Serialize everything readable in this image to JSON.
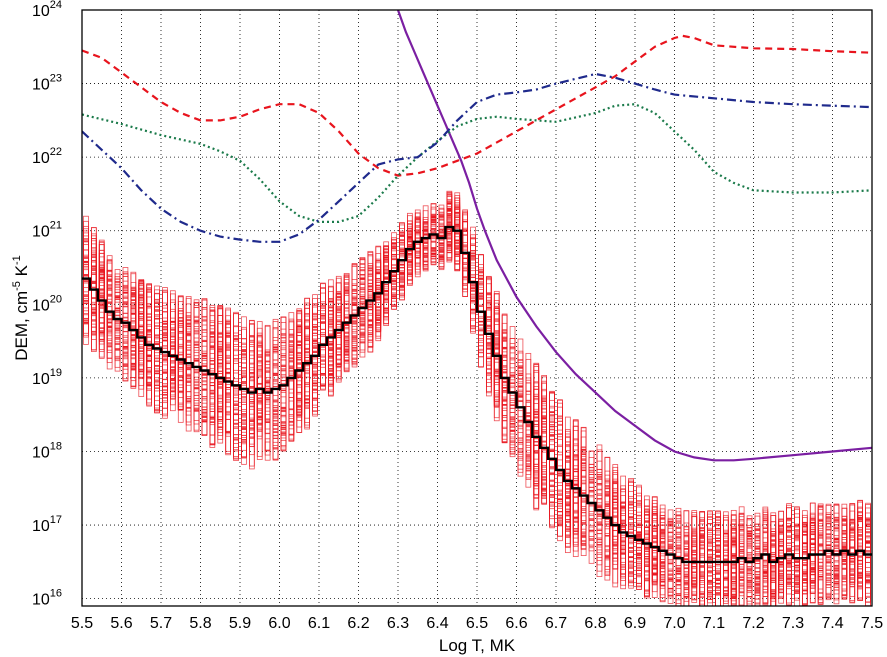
{
  "chart_data": {
    "type": "line",
    "title": "",
    "xlabel": "Log T, MK",
    "ylabel": "DEM, cm",
    "ylabel_exp1": "-5",
    "ylabel_mid": " K",
    "ylabel_exp2": "-1",
    "xlim": [
      5.5,
      7.5
    ],
    "ylim_log10": [
      15.9,
      24
    ],
    "y_scale": "log",
    "grid": true,
    "x_ticks": [
      "5.5",
      "5.6",
      "5.7",
      "5.8",
      "5.9",
      "6.0",
      "6.1",
      "6.2",
      "6.3",
      "6.4",
      "6.5",
      "6.6",
      "6.7",
      "6.8",
      "6.9",
      "7.0",
      "7.1",
      "7.2",
      "7.3",
      "7.4",
      "7.5"
    ],
    "y_ticks": [
      {
        "exp": 24,
        "base": "10",
        "sup": "24"
      },
      {
        "exp": 23,
        "base": "10",
        "sup": "23"
      },
      {
        "exp": 22,
        "base": "10",
        "sup": "22"
      },
      {
        "exp": 21,
        "base": "10",
        "sup": "21"
      },
      {
        "exp": 20,
        "base": "10",
        "sup": "20"
      },
      {
        "exp": 19,
        "base": "10",
        "sup": "19"
      },
      {
        "exp": 18,
        "base": "10",
        "sup": "18"
      },
      {
        "exp": 17,
        "base": "10",
        "sup": "17"
      },
      {
        "exp": 16,
        "base": "10",
        "sup": "16"
      }
    ],
    "step_width": 0.02,
    "dem_step": {
      "color": "#000000",
      "style": "solid-step",
      "x": [
        5.5,
        5.52,
        5.54,
        5.56,
        5.58,
        5.6,
        5.62,
        5.64,
        5.66,
        5.68,
        5.7,
        5.72,
        5.74,
        5.76,
        5.78,
        5.8,
        5.82,
        5.84,
        5.86,
        5.88,
        5.9,
        5.92,
        5.94,
        5.96,
        5.98,
        6.0,
        6.02,
        6.04,
        6.06,
        6.08,
        6.1,
        6.12,
        6.14,
        6.16,
        6.18,
        6.2,
        6.22,
        6.24,
        6.26,
        6.28,
        6.3,
        6.32,
        6.34,
        6.36,
        6.38,
        6.4,
        6.42,
        6.44,
        6.46,
        6.48,
        6.5,
        6.52,
        6.54,
        6.56,
        6.58,
        6.6,
        6.62,
        6.64,
        6.66,
        6.68,
        6.7,
        6.72,
        6.74,
        6.76,
        6.78,
        6.8,
        6.82,
        6.84,
        6.86,
        6.88,
        6.9,
        6.92,
        6.94,
        6.96,
        6.98,
        7.0,
        7.02,
        7.04,
        7.06,
        7.08,
        7.1,
        7.12,
        7.14,
        7.16,
        7.18,
        7.2,
        7.22,
        7.24,
        7.26,
        7.28,
        7.3,
        7.32,
        7.34,
        7.36,
        7.38,
        7.4,
        7.42,
        7.44,
        7.46,
        7.48
      ],
      "log10_y": [
        20.35,
        20.2,
        20.05,
        19.9,
        19.8,
        19.75,
        19.65,
        19.55,
        19.45,
        19.4,
        19.35,
        19.3,
        19.25,
        19.2,
        19.15,
        19.1,
        19.05,
        19.0,
        18.95,
        18.9,
        18.85,
        18.8,
        18.85,
        18.8,
        18.85,
        18.9,
        19.0,
        19.1,
        19.2,
        19.3,
        19.45,
        19.55,
        19.65,
        19.75,
        19.85,
        19.95,
        20.05,
        20.15,
        20.3,
        20.45,
        20.6,
        20.75,
        20.85,
        20.9,
        20.95,
        20.9,
        21.05,
        21.0,
        20.7,
        20.3,
        19.9,
        19.6,
        19.3,
        19.0,
        18.8,
        18.6,
        18.4,
        18.2,
        18.05,
        17.9,
        17.75,
        17.6,
        17.5,
        17.4,
        17.3,
        17.2,
        17.1,
        17.0,
        16.9,
        16.85,
        16.8,
        16.75,
        16.7,
        16.65,
        16.6,
        16.55,
        16.5,
        16.5,
        16.5,
        16.5,
        16.5,
        16.5,
        16.5,
        16.55,
        16.5,
        16.55,
        16.6,
        16.5,
        16.55,
        16.6,
        16.55,
        16.55,
        16.6,
        16.6,
        16.65,
        16.6,
        16.65,
        16.6,
        16.65,
        16.6
      ]
    },
    "mc_spread": {
      "color": "#e8141d",
      "realizations": 80,
      "log10_halfwidth": [
        0.9,
        0.85,
        0.85,
        0.85,
        0.8,
        0.8,
        0.8,
        0.85,
        0.85,
        0.9,
        0.9,
        0.9,
        0.9,
        0.95,
        0.95,
        1.0,
        1.0,
        1.0,
        1.0,
        1.05,
        1.05,
        1.05,
        1.0,
        1.0,
        1.0,
        0.95,
        0.95,
        0.9,
        0.9,
        0.85,
        0.85,
        0.8,
        0.8,
        0.75,
        0.75,
        0.7,
        0.7,
        0.65,
        0.6,
        0.55,
        0.55,
        0.5,
        0.5,
        0.45,
        0.45,
        0.45,
        0.5,
        0.55,
        0.65,
        0.75,
        0.8,
        0.85,
        0.9,
        0.9,
        0.9,
        0.95,
        0.95,
        1.0,
        1.0,
        1.0,
        1.0,
        1.0,
        0.95,
        0.95,
        0.9,
        0.9,
        0.85,
        0.85,
        0.8,
        0.8,
        0.75,
        0.75,
        0.7,
        0.7,
        0.7,
        0.7,
        0.7,
        0.7,
        0.7,
        0.7,
        0.7,
        0.7,
        0.7,
        0.7,
        0.7,
        0.7,
        0.7,
        0.7,
        0.7,
        0.7,
        0.7,
        0.7,
        0.7,
        0.7,
        0.7,
        0.7,
        0.7,
        0.7,
        0.7,
        0.7
      ]
    },
    "em_loci": [
      {
        "color": "#7b1fa2",
        "dash": "",
        "width": 2.2,
        "x": [
          6.3,
          6.32,
          6.34,
          6.36,
          6.38,
          6.4,
          6.42,
          6.44,
          6.46,
          6.48,
          6.5,
          6.52,
          6.55,
          6.6,
          6.65,
          6.7,
          6.75,
          6.8,
          6.85,
          6.9,
          6.95,
          7.0,
          7.05,
          7.1,
          7.15,
          7.2,
          7.3,
          7.4,
          7.5
        ],
        "log10_y": [
          24.0,
          23.7,
          23.45,
          23.2,
          22.95,
          22.7,
          22.45,
          22.2,
          21.95,
          21.65,
          21.3,
          21.0,
          20.6,
          20.1,
          19.7,
          19.35,
          19.05,
          18.8,
          18.55,
          18.35,
          18.15,
          18.0,
          17.92,
          17.88,
          17.88,
          17.9,
          17.95,
          18.0,
          18.05
        ]
      },
      {
        "color": "#e8141d",
        "dash": "7,5",
        "width": 2.2,
        "x": [
          5.5,
          5.55,
          5.6,
          5.65,
          5.7,
          5.75,
          5.8,
          5.85,
          5.9,
          5.95,
          6.0,
          6.05,
          6.1,
          6.15,
          6.2,
          6.25,
          6.3,
          6.35,
          6.4,
          6.45,
          6.5,
          6.6,
          6.7,
          6.8,
          6.85,
          6.9,
          6.95,
          7.0,
          7.02,
          7.05,
          7.1,
          7.2,
          7.3,
          7.4,
          7.5
        ],
        "log10_y": [
          23.45,
          23.35,
          23.15,
          22.95,
          22.75,
          22.6,
          22.5,
          22.5,
          22.55,
          22.65,
          22.72,
          22.72,
          22.6,
          22.35,
          22.05,
          21.85,
          21.75,
          21.78,
          21.85,
          21.95,
          22.05,
          22.35,
          22.65,
          22.95,
          23.1,
          23.3,
          23.5,
          23.62,
          23.65,
          23.62,
          23.52,
          23.48,
          23.47,
          23.44,
          23.42
        ]
      },
      {
        "color": "#1a7a4a",
        "dash": "2,3",
        "width": 2.2,
        "x": [
          5.5,
          5.6,
          5.7,
          5.8,
          5.85,
          5.9,
          5.95,
          6.0,
          6.05,
          6.1,
          6.15,
          6.2,
          6.25,
          6.3,
          6.35,
          6.4,
          6.45,
          6.5,
          6.55,
          6.6,
          6.7,
          6.8,
          6.85,
          6.9,
          6.95,
          7.0,
          7.05,
          7.1,
          7.15,
          7.2,
          7.3,
          7.4,
          7.5
        ],
        "log10_y": [
          22.58,
          22.45,
          22.3,
          22.18,
          22.08,
          21.95,
          21.7,
          21.4,
          21.2,
          21.12,
          21.12,
          21.2,
          21.45,
          21.75,
          22.0,
          22.22,
          22.42,
          22.52,
          22.55,
          22.52,
          22.48,
          22.6,
          22.7,
          22.72,
          22.6,
          22.35,
          22.1,
          21.8,
          21.65,
          21.55,
          21.52,
          21.52,
          21.55
        ]
      },
      {
        "color": "#1f2a8c",
        "dash": "9,4,2,4",
        "width": 2.2,
        "x": [
          5.5,
          5.55,
          5.6,
          5.65,
          5.7,
          5.75,
          5.8,
          5.85,
          5.9,
          5.95,
          6.0,
          6.05,
          6.1,
          6.15,
          6.2,
          6.25,
          6.3,
          6.35,
          6.4,
          6.45,
          6.5,
          6.55,
          6.6,
          6.65,
          6.7,
          6.8,
          6.85,
          6.9,
          6.95,
          7.0,
          7.1,
          7.2,
          7.3,
          7.4,
          7.5
        ],
        "log10_y": [
          22.35,
          22.1,
          21.85,
          21.55,
          21.3,
          21.12,
          21.0,
          20.92,
          20.88,
          20.85,
          20.85,
          20.95,
          21.15,
          21.4,
          21.65,
          21.9,
          21.97,
          22.0,
          22.2,
          22.5,
          22.75,
          22.85,
          22.88,
          22.92,
          23.0,
          23.13,
          23.08,
          23.0,
          22.92,
          22.85,
          22.8,
          22.75,
          22.72,
          22.7,
          22.68
        ]
      }
    ]
  }
}
